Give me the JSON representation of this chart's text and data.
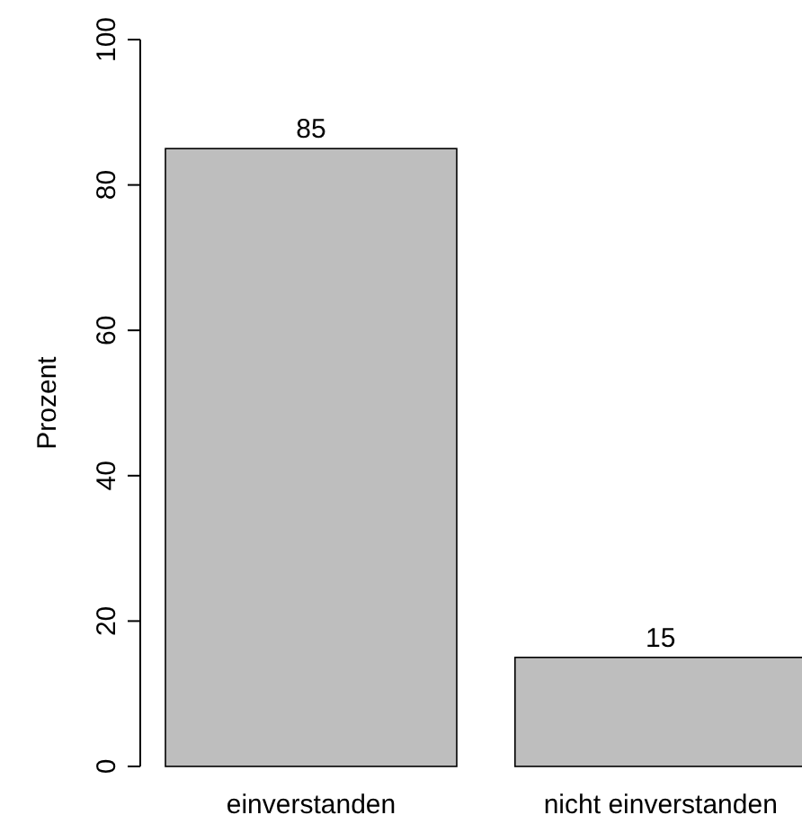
{
  "chart_data": {
    "type": "bar",
    "ylabel": "Prozent",
    "categories": [
      "einverstanden",
      "nicht einverstanden"
    ],
    "values": [
      85,
      15
    ],
    "color": "#bebebe",
    "ylim": [
      0,
      100
    ],
    "yticks": [
      0,
      20,
      40,
      60,
      80,
      100
    ],
    "data_labels": true
  }
}
